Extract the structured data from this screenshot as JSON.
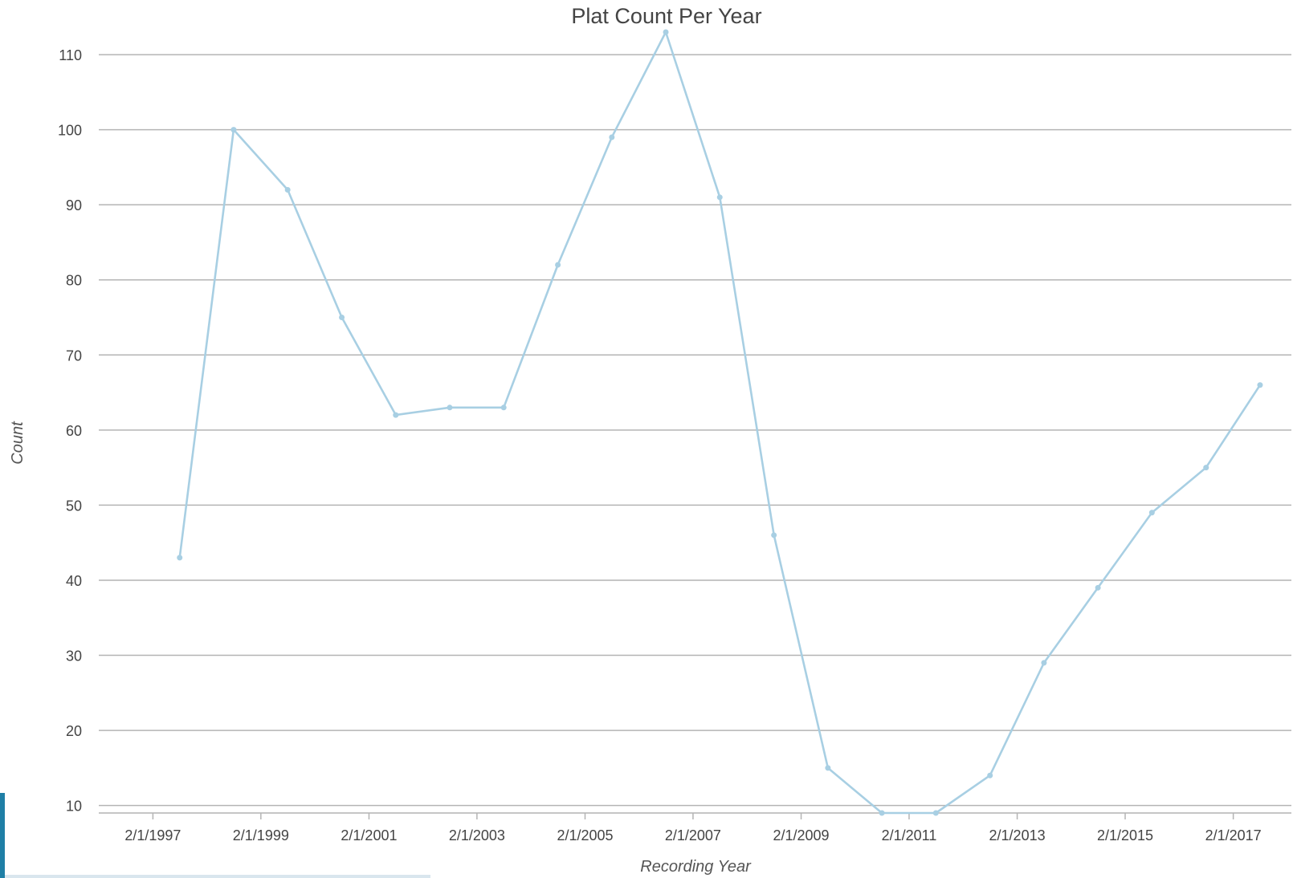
{
  "chart_data": {
    "type": "line",
    "title": "Plat Count Per Year",
    "xlabel": "Recording Year",
    "ylabel": "Count",
    "x_tick_labels": [
      "2/1/1997",
      "2/1/1999",
      "2/1/2001",
      "2/1/2003",
      "2/1/2005",
      "2/1/2007",
      "2/1/2009",
      "2/1/2011",
      "2/1/2013",
      "2/1/2015",
      "2/1/2017"
    ],
    "x_ticks": [
      "1997-02-01",
      "1999-02-01",
      "2001-02-01",
      "2003-02-01",
      "2005-02-01",
      "2007-02-01",
      "2009-02-01",
      "2011-02-01",
      "2013-02-01",
      "2015-02-01",
      "2017-02-01"
    ],
    "y_ticks": [
      10,
      20,
      30,
      40,
      50,
      60,
      70,
      80,
      90,
      100,
      110
    ],
    "xlim": [
      "1996-02-01",
      "2018-03-01"
    ],
    "ylim": [
      9,
      113
    ],
    "grid": true,
    "series": [
      {
        "color": "#a8cfe3",
        "x": [
          "1997-08-01",
          "1998-08-01",
          "1999-08-01",
          "2000-08-01",
          "2001-08-01",
          "2002-08-01",
          "2003-08-01",
          "2004-08-01",
          "2005-08-01",
          "2006-08-01",
          "2007-08-01",
          "2008-08-01",
          "2009-08-01",
          "2010-08-01",
          "2011-08-01",
          "2012-08-01",
          "2013-08-01",
          "2014-08-01",
          "2015-08-01",
          "2016-08-01",
          "2017-08-01"
        ],
        "values": [
          43,
          100,
          92,
          75,
          62,
          63,
          63,
          82,
          99,
          113,
          91,
          46,
          15,
          9,
          9,
          14,
          29,
          39,
          49,
          55,
          66
        ]
      }
    ]
  }
}
